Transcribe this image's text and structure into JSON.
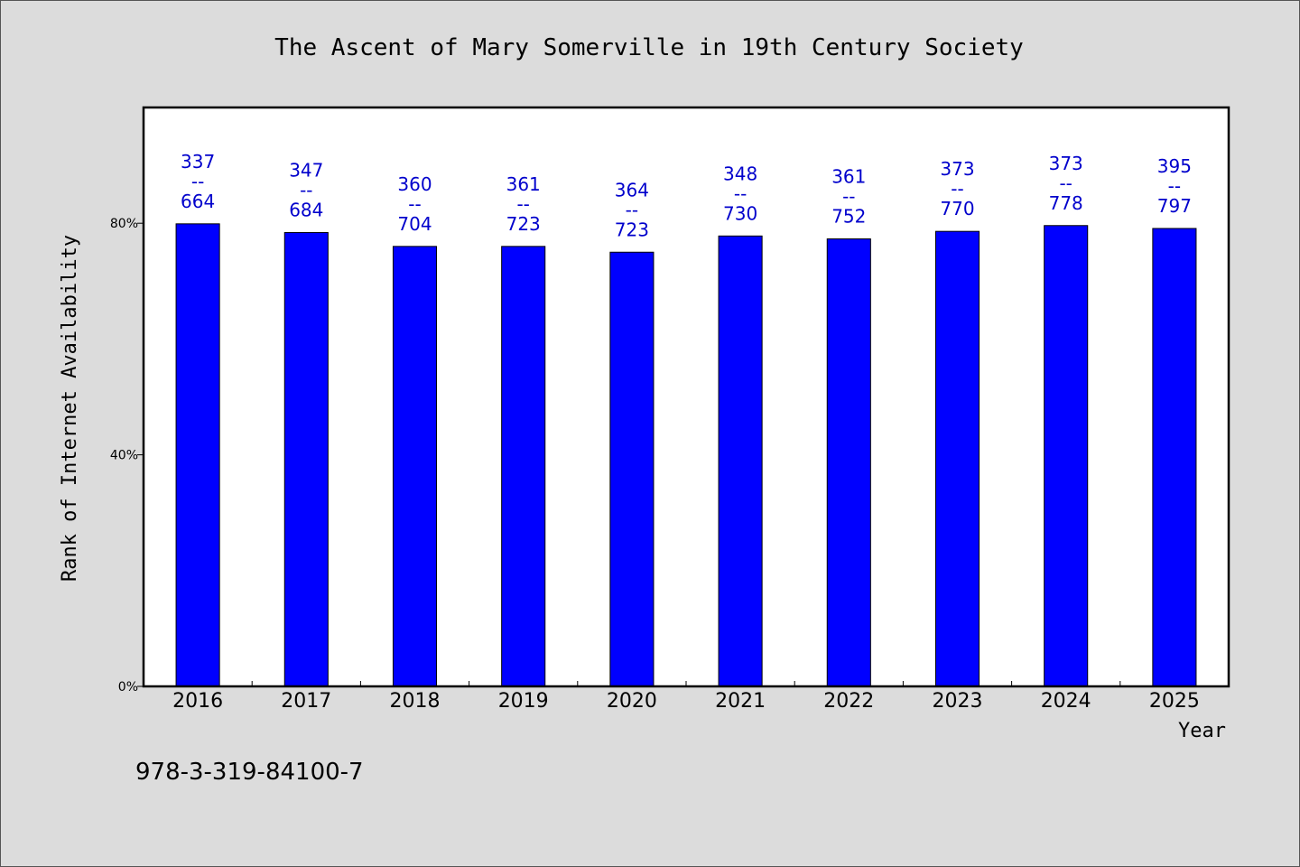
{
  "chart_data": {
    "type": "bar",
    "title": "The Ascent of Mary Somerville in 19th Century Society",
    "xlabel": "Year",
    "ylabel": "Rank of Internet Availability",
    "categories": [
      "2016",
      "2017",
      "2018",
      "2019",
      "2020",
      "2021",
      "2022",
      "2023",
      "2024",
      "2025"
    ],
    "values": [
      79.9,
      78.4,
      76.0,
      76.0,
      75.0,
      77.8,
      77.3,
      78.6,
      79.6,
      79.1
    ],
    "value_unit": "%",
    "bar_labels": [
      {
        "top": "337",
        "sep": "--",
        "bottom": "664"
      },
      {
        "top": "347",
        "sep": "--",
        "bottom": "684"
      },
      {
        "top": "360",
        "sep": "--",
        "bottom": "704"
      },
      {
        "top": "361",
        "sep": "--",
        "bottom": "723"
      },
      {
        "top": "364",
        "sep": "--",
        "bottom": "723"
      },
      {
        "top": "348",
        "sep": "--",
        "bottom": "730"
      },
      {
        "top": "361",
        "sep": "--",
        "bottom": "752"
      },
      {
        "top": "373",
        "sep": "--",
        "bottom": "770"
      },
      {
        "top": "373",
        "sep": "--",
        "bottom": "778"
      },
      {
        "top": "395",
        "sep": "--",
        "bottom": "797"
      }
    ],
    "yticks": [
      {
        "value": 0,
        "label": "0%"
      },
      {
        "value": 40,
        "label": "40%"
      },
      {
        "value": 80,
        "label": "80%"
      }
    ],
    "ylim": [
      0,
      100
    ],
    "grid": false,
    "legend": "none",
    "colors": {
      "bar": "#0000ff",
      "bar_label": "#0000cc",
      "plot_background": "#ffffff",
      "page_background": "#dcdcdc"
    }
  },
  "footnote": "978-3-319-84100-7"
}
